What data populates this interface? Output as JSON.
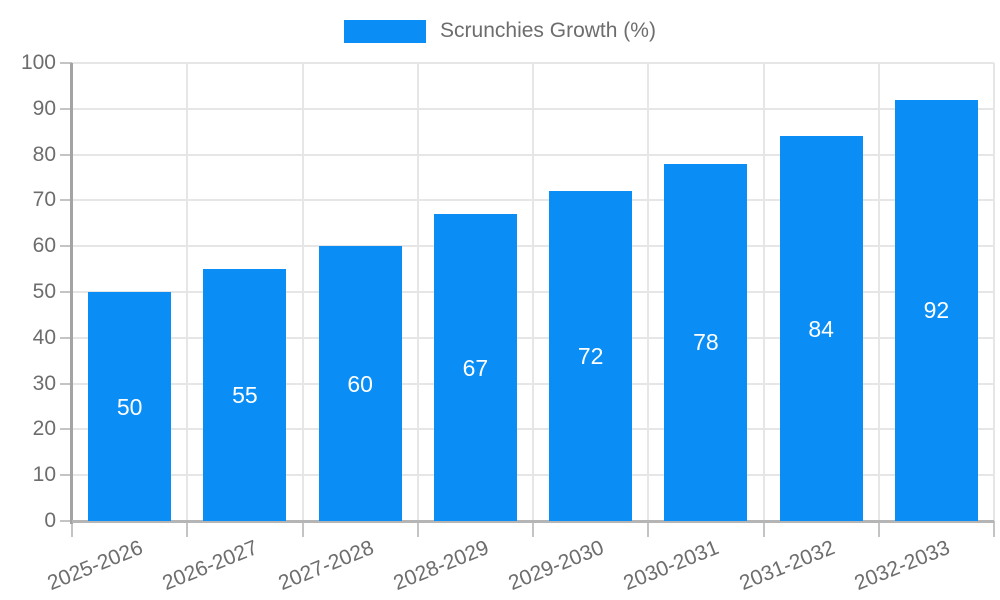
{
  "legend": {
    "label": "Scrunchies Growth (%)",
    "swatch_color": "#0a8ef6"
  },
  "chart_data": {
    "type": "bar",
    "title": "",
    "categories": [
      "2025-2026",
      "2026-2027",
      "2027-2028",
      "2028-2029",
      "2029-2030",
      "2030-2031",
      "2031-2032",
      "2032-2033"
    ],
    "series": [
      {
        "name": "Scrunchies Growth (%)",
        "color": "#0a8ef6",
        "values": [
          50,
          55,
          60,
          67,
          72,
          78,
          84,
          92
        ]
      }
    ],
    "data_labels": {
      "show": true,
      "color": "#ffffff",
      "position": "center"
    },
    "xlabel": "",
    "ylabel": "",
    "ylim": [
      0,
      100
    ],
    "ytick_step": 10,
    "ytick_labels": [
      "0",
      "10",
      "20",
      "30",
      "40",
      "50",
      "60",
      "70",
      "80",
      "90",
      "100"
    ],
    "grid": true,
    "legend_position": "top"
  },
  "colors": {
    "bar": "#0a8ef6",
    "axis_text": "#6d6d6d",
    "grid": "#e6e6e6",
    "y_axis_line": "#a3a3a3",
    "x_axis_line": "#b5b5b5",
    "tick": "#c4c4c4",
    "background": "#ffffff",
    "data_label": "#ffffff"
  }
}
